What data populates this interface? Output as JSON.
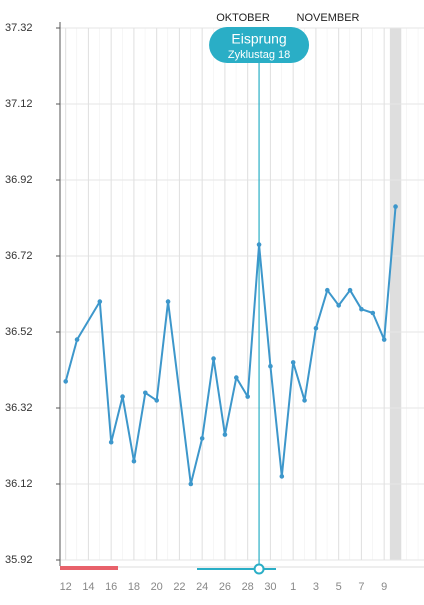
{
  "chart_data": {
    "type": "line",
    "month_labels": [
      "OKTOBER",
      "NOVEMBER"
    ],
    "x": [
      0,
      1,
      3,
      4,
      5,
      6,
      7,
      8,
      9,
      11,
      12,
      13,
      14,
      15,
      16,
      17,
      18,
      19,
      20,
      21,
      22,
      23,
      24,
      25,
      26,
      27,
      28,
      29
    ],
    "series": [
      {
        "color": "#3d97cb",
        "values": [
          36.39,
          36.5,
          36.6,
          36.23,
          36.35,
          36.18,
          36.36,
          36.34,
          36.6,
          36.12,
          36.24,
          36.45,
          36.25,
          36.4,
          36.35,
          36.75,
          36.43,
          36.14,
          36.44,
          36.34,
          36.53,
          36.63,
          36.59,
          36.63,
          36.58,
          36.57,
          36.5,
          36.85
        ]
      }
    ],
    "xlim": [
      -0.5,
      31.5
    ],
    "xticks": [
      {
        "value": 0,
        "label": "12"
      },
      {
        "value": 2,
        "label": "14"
      },
      {
        "value": 4,
        "label": "16"
      },
      {
        "value": 6,
        "label": "18"
      },
      {
        "value": 8,
        "label": "20"
      },
      {
        "value": 10,
        "label": "22"
      },
      {
        "value": 12,
        "label": "24"
      },
      {
        "value": 14,
        "label": "26"
      },
      {
        "value": 16,
        "label": "28"
      },
      {
        "value": 18,
        "label": "30"
      },
      {
        "value": 20,
        "label": "1"
      },
      {
        "value": 22,
        "label": "3"
      },
      {
        "value": 24,
        "label": "5"
      },
      {
        "value": 26,
        "label": "7"
      },
      {
        "value": 28,
        "label": "9"
      }
    ],
    "ylim": [
      35.92,
      37.32
    ],
    "yticks": [
      35.92,
      36.12,
      36.32,
      36.52,
      36.72,
      36.92,
      37.12,
      37.32
    ],
    "grid": true,
    "highlight_x": 29,
    "ovulation": {
      "x": 17,
      "title": "Eisprung",
      "subtitle": "Zyklustag 18",
      "color": "#2aaec6"
    }
  }
}
